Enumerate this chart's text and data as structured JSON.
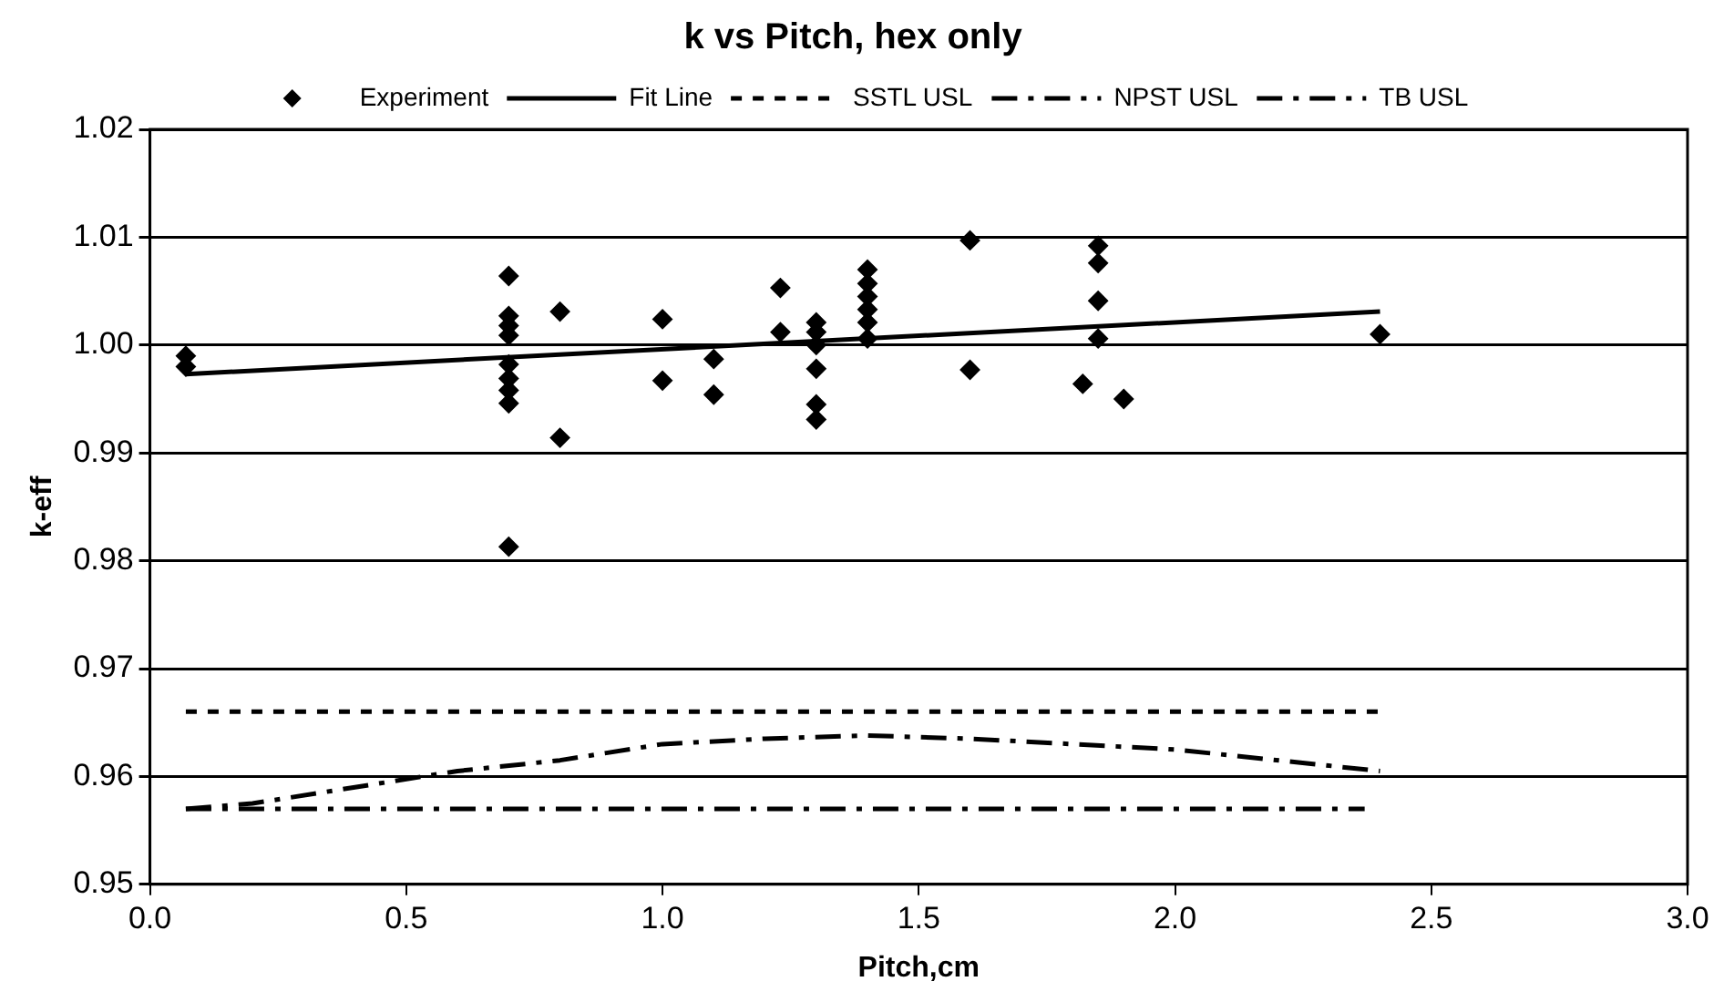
{
  "chart_data": {
    "type": "scatter",
    "title": "k vs Pitch, hex only",
    "xlabel": "Pitch,cm",
    "ylabel": "k-eff",
    "xlim": [
      0,
      3
    ],
    "xticks": [
      {
        "value": 0,
        "label": "0.0"
      },
      0.5,
      {
        "value": 1,
        "label": "1.0"
      },
      1.5,
      {
        "value": 2,
        "label": "2.0"
      },
      2.5,
      {
        "value": 3,
        "label": "3.0"
      }
    ],
    "ylim": [
      0.95,
      1.02
    ],
    "yticks": [
      0.95,
      0.96,
      0.97,
      0.98,
      0.99,
      {
        "value": 1,
        "label": "1.00"
      },
      1.01,
      1.02
    ],
    "grid": "y",
    "legend": "top",
    "series": [
      {
        "name": "Experiment",
        "marker": "diamond",
        "color": "#000000",
        "x": [
          0.07,
          0.07,
          0.7,
          0.7,
          0.7,
          0.7,
          0.7,
          0.7,
          0.7,
          0.7,
          0.7,
          0.8,
          0.8,
          1.0,
          1.0,
          1.1,
          1.1,
          1.23,
          1.23,
          1.3,
          1.3,
          1.3,
          1.3,
          1.3,
          1.3,
          1.4,
          1.4,
          1.4,
          1.4,
          1.4,
          1.4,
          1.6,
          1.6,
          1.82,
          1.85,
          1.85,
          1.85,
          1.85,
          1.9,
          2.4
        ],
        "values": [
          0.999,
          0.998,
          1.0064,
          1.0027,
          1.0018,
          1.0009,
          0.9982,
          0.9969,
          0.9958,
          0.9946,
          0.9813,
          1.0031,
          0.9914,
          1.0024,
          0.9967,
          0.9987,
          0.9954,
          1.0053,
          1.0012,
          1.0021,
          1.0012,
          1.0,
          0.9978,
          0.9945,
          0.9931,
          1.007,
          1.0057,
          1.0045,
          1.0033,
          1.0021,
          1.0006,
          1.0097,
          0.9977,
          0.9964,
          1.0092,
          1.0076,
          1.0041,
          1.0006,
          0.995,
          1.001
        ]
      },
      {
        "name": "Fit Line",
        "type": "line",
        "marker": "none",
        "line_style": "solid",
        "color": "#000000",
        "x": [
          0.07,
          2.4
        ],
        "values": [
          0.9973,
          1.0031
        ]
      },
      {
        "name": "SSTL USL",
        "type": "line",
        "marker": "none",
        "line_style": "dotted",
        "color": "#000000",
        "x": [
          0.07,
          2.4
        ],
        "values": [
          0.966,
          0.966
        ]
      },
      {
        "name": "NPST USL",
        "type": "line",
        "marker": "none",
        "line_style": "dashed",
        "color": "#000000",
        "x": [
          0.07,
          0.2,
          0.4,
          0.6,
          0.8,
          1.0,
          1.2,
          1.4,
          1.6,
          1.8,
          2.0,
          2.3,
          2.4
        ],
        "values": [
          0.957,
          0.9575,
          0.959,
          0.9605,
          0.9615,
          0.963,
          0.9635,
          0.9638,
          0.9635,
          0.963,
          0.9625,
          0.961,
          0.9605
        ]
      },
      {
        "name": "TB USL",
        "type": "line",
        "marker": "none",
        "line_style": "dashed",
        "color": "#000000",
        "x": [
          0.07,
          2.37
        ],
        "values": [
          0.957,
          0.957
        ]
      }
    ]
  }
}
